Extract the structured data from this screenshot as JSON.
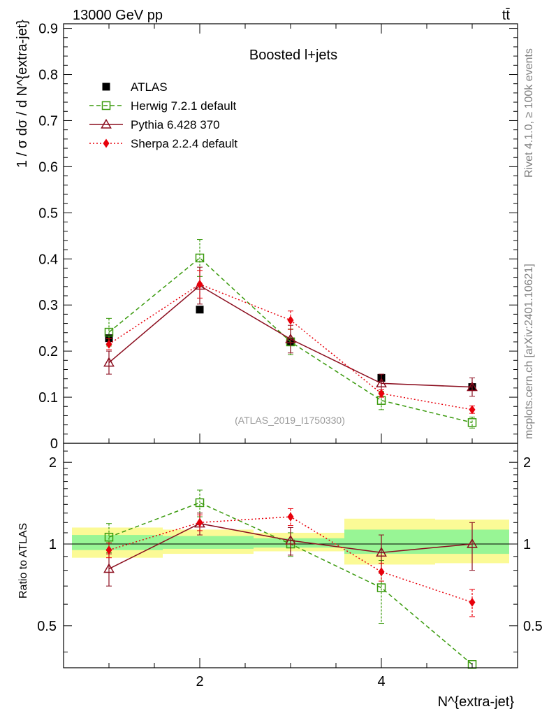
{
  "header": {
    "energy_label": "13000 GeV pp",
    "process_label": "tt̄",
    "side_label_top": "Rivet 4.1.0, ≥ 100k events",
    "side_label_bottom": "mcplots.cern.ch [arXiv:2401.10621]"
  },
  "chart_data": [
    {
      "type": "line",
      "panel": "main",
      "title": "Boosted l+jets",
      "watermark": "(ATLAS_2019_I1750330)",
      "xlabel": "N^{extra-jet}",
      "ylabel": "1 / σ dσ / d N^{extra-jet}",
      "xlim": [
        0.5,
        5.5
      ],
      "ylim": [
        0,
        0.91
      ],
      "yticks": [
        0,
        0.1,
        0.2,
        0.3,
        0.4,
        0.5,
        0.6,
        0.7,
        0.8,
        0.9
      ],
      "ytick_labels": [
        "0",
        "0.1",
        "0.2",
        "0.3",
        "0.4",
        "0.5",
        "0.6",
        "0.7",
        "0.8",
        "0.9"
      ],
      "x": [
        1,
        2,
        3,
        4,
        5
      ],
      "legend_position": "top-left",
      "series": [
        {
          "name": "ATLAS",
          "color": "#000000",
          "marker": "filled-square",
          "line": "none",
          "values": [
            0.228,
            0.29,
            0.221,
            0.142,
            0.122
          ],
          "err": [
            0.005,
            0.005,
            0.005,
            0.005,
            0.005
          ]
        },
        {
          "name": "Herwig 7.2.1 default",
          "color": "#3a9a0d",
          "marker": "open-square",
          "line": "dashed",
          "values": [
            0.241,
            0.402,
            0.22,
            0.093,
            0.045
          ],
          "err": [
            0.03,
            0.04,
            0.028,
            0.02,
            0.012
          ]
        },
        {
          "name": "Pythia 6.428 370",
          "color": "#8b0e1f",
          "marker": "open-triangle",
          "line": "solid",
          "values": [
            0.175,
            0.342,
            0.226,
            0.13,
            0.122
          ],
          "err": [
            0.025,
            0.04,
            0.03,
            0.02,
            0.02
          ]
        },
        {
          "name": "Sherpa 2.2.4 default",
          "color": "#e8000b",
          "marker": "filled-diamond",
          "line": "dotted",
          "values": [
            0.215,
            0.345,
            0.267,
            0.108,
            0.073
          ],
          "err": [
            0.012,
            0.03,
            0.02,
            0.008,
            0.008
          ]
        }
      ]
    },
    {
      "type": "line",
      "panel": "ratio",
      "xlabel": "N^{extra-jet}",
      "ylabel": "Ratio to ATLAS",
      "xlim": [
        0.5,
        5.5
      ],
      "ylim": [
        0.35,
        2.35
      ],
      "yticks": [
        0.5,
        1,
        2
      ],
      "ytick_labels": [
        "0.5",
        "1",
        "2"
      ],
      "xticks": [
        2,
        4
      ],
      "xtick_labels": [
        "2",
        "4"
      ],
      "x": [
        1,
        2,
        3,
        4,
        5
      ],
      "bands": {
        "edges": [
          0.5,
          1.5,
          2.5,
          3.5,
          4.5,
          5.5
        ],
        "outer_color": "#fbfa96",
        "inner_color": "#98f595",
        "outer_low": [
          0.89,
          0.92,
          0.94,
          0.84,
          0.85
        ],
        "outer_high": [
          1.15,
          1.13,
          1.1,
          1.24,
          1.23
        ],
        "inner_low": [
          0.95,
          0.96,
          0.97,
          0.92,
          0.92
        ],
        "inner_high": [
          1.08,
          1.07,
          1.05,
          1.13,
          1.13
        ]
      },
      "series": [
        {
          "name": "Herwig 7.2.1 default",
          "color": "#3a9a0d",
          "marker": "open-square",
          "line": "dashed",
          "values": [
            1.06,
            1.42,
            1.0,
            0.69,
            0.36
          ],
          "err": [
            0.13,
            0.16,
            0.1,
            0.18,
            0.0
          ]
        },
        {
          "name": "Pythia 6.428 370",
          "color": "#8b0e1f",
          "marker": "open-triangle",
          "line": "solid",
          "values": [
            0.81,
            1.19,
            1.03,
            0.93,
            1.0
          ],
          "err": [
            0.11,
            0.11,
            0.12,
            0.15,
            0.2
          ]
        },
        {
          "name": "Sherpa 2.2.4 default",
          "color": "#e8000b",
          "marker": "filled-diamond",
          "line": "dotted",
          "values": [
            0.95,
            1.2,
            1.26,
            0.79,
            0.61
          ],
          "err": [
            0.06,
            0.08,
            0.09,
            0.06,
            0.07
          ]
        }
      ]
    }
  ]
}
